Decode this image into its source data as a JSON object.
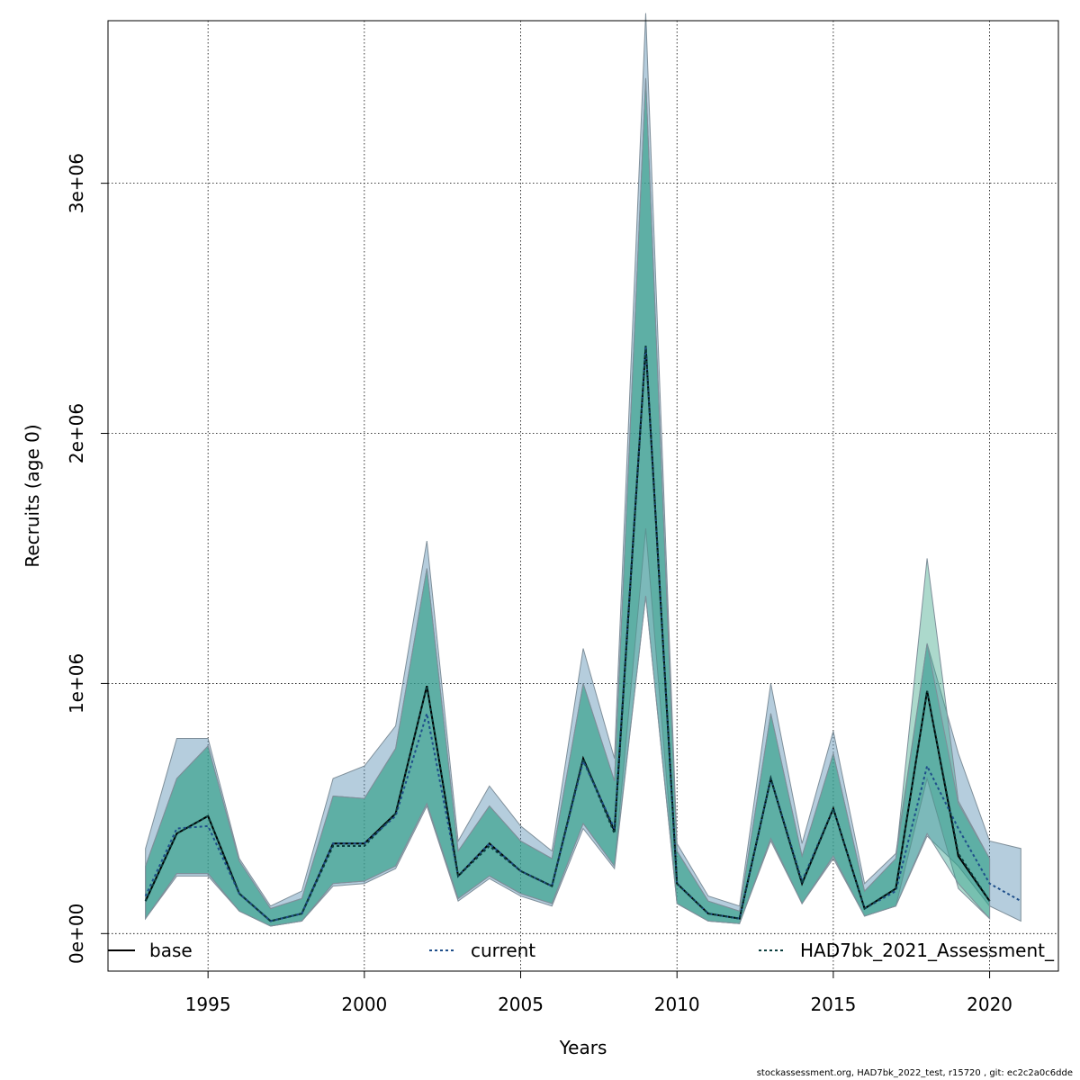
{
  "chart_data": {
    "type": "area",
    "xlabel": "Years",
    "ylabel": "Recruits (age 0)",
    "xlim": [
      1991.8,
      2022.2
    ],
    "ylim": [
      -150000,
      3650000
    ],
    "x_ticks": [
      {
        "value": 1995,
        "label": "1995"
      },
      {
        "value": 2000,
        "label": "2000"
      },
      {
        "value": 2005,
        "label": "2005"
      },
      {
        "value": 2010,
        "label": "2010"
      },
      {
        "value": 2015,
        "label": "2015"
      },
      {
        "value": 2020,
        "label": "2020"
      }
    ],
    "y_ticks": [
      {
        "value": 0,
        "label": "0e+00"
      },
      {
        "value": 1000000,
        "label": "1e+06"
      },
      {
        "value": 2000000,
        "label": "2e+06"
      },
      {
        "value": 3000000,
        "label": "3e+06"
      }
    ],
    "grid": true,
    "legend_position": "bottom",
    "series": [
      {
        "name": "base",
        "color": "#000000",
        "dash": "solid",
        "x": [
          1993,
          1994,
          1995,
          1996,
          1997,
          1998,
          1999,
          2000,
          2001,
          2002,
          2003,
          2004,
          2005,
          2006,
          2007,
          2008,
          2009,
          2010,
          2011,
          2012,
          2013,
          2014,
          2015,
          2016,
          2017,
          2018,
          2019,
          2020
        ],
        "y": [
          130000,
          400000,
          470000,
          160000,
          50000,
          80000,
          360000,
          360000,
          480000,
          990000,
          230000,
          360000,
          250000,
          190000,
          700000,
          410000,
          2350000,
          200000,
          80000,
          60000,
          620000,
          200000,
          500000,
          100000,
          180000,
          970000,
          310000,
          130000
        ],
        "lower": [
          60000,
          240000,
          240000,
          90000,
          30000,
          50000,
          200000,
          210000,
          270000,
          520000,
          140000,
          230000,
          160000,
          120000,
          440000,
          270000,
          1350000,
          120000,
          50000,
          40000,
          380000,
          120000,
          310000,
          70000,
          110000,
          400000,
          200000,
          60000
        ],
        "upper": [
          270000,
          620000,
          750000,
          290000,
          100000,
          140000,
          550000,
          540000,
          740000,
          1460000,
          330000,
          510000,
          370000,
          300000,
          1000000,
          610000,
          3420000,
          330000,
          130000,
          90000,
          880000,
          310000,
          720000,
          170000,
          300000,
          1160000,
          520000,
          300000
        ],
        "band_color": "#2e9e8a"
      },
      {
        "name": "current",
        "color": "#1f4f8a",
        "dash": "dotted",
        "x": [
          1993,
          1994,
          1995,
          1996,
          1997,
          1998,
          1999,
          2000,
          2001,
          2002,
          2003,
          2004,
          2005,
          2006,
          2007,
          2008,
          2009,
          2010,
          2011,
          2012,
          2013,
          2014,
          2015,
          2016,
          2017,
          2018,
          2019,
          2020,
          2021
        ],
        "y": [
          150000,
          420000,
          430000,
          160000,
          50000,
          80000,
          360000,
          360000,
          470000,
          880000,
          230000,
          360000,
          250000,
          190000,
          690000,
          420000,
          2350000,
          200000,
          80000,
          60000,
          620000,
          210000,
          500000,
          100000,
          170000,
          670000,
          420000,
          200000,
          130000
        ],
        "lower": [
          60000,
          230000,
          230000,
          90000,
          30000,
          50000,
          190000,
          200000,
          260000,
          510000,
          130000,
          220000,
          150000,
          110000,
          420000,
          260000,
          1350000,
          120000,
          50000,
          40000,
          370000,
          120000,
          300000,
          70000,
          110000,
          390000,
          270000,
          110000,
          50000
        ],
        "upper": [
          340000,
          780000,
          780000,
          300000,
          110000,
          170000,
          620000,
          670000,
          830000,
          1570000,
          370000,
          590000,
          430000,
          330000,
          1140000,
          700000,
          3680000,
          360000,
          150000,
          110000,
          1000000,
          360000,
          810000,
          200000,
          320000,
          1160000,
          720000,
          370000,
          340000
        ],
        "band_color": "#4f87ad"
      },
      {
        "name": "HAD7bk_2021_Assessment_",
        "color": "#0b3d3d",
        "dash": "dotted",
        "x": [
          1993,
          1994,
          1995,
          1996,
          1997,
          1998,
          1999,
          2000,
          2001,
          2002,
          2003,
          2004,
          2005,
          2006,
          2007,
          2008,
          2009,
          2010,
          2011,
          2012,
          2013,
          2014,
          2015,
          2016,
          2017,
          2018,
          2019,
          2020
        ],
        "y": [
          130000,
          400000,
          470000,
          160000,
          50000,
          80000,
          350000,
          350000,
          480000,
          990000,
          230000,
          350000,
          250000,
          190000,
          700000,
          400000,
          2350000,
          200000,
          80000,
          60000,
          620000,
          200000,
          500000,
          100000,
          180000,
          970000,
          320000,
          130000
        ],
        "lower": [
          60000,
          240000,
          240000,
          90000,
          30000,
          50000,
          200000,
          210000,
          270000,
          520000,
          140000,
          230000,
          160000,
          120000,
          440000,
          270000,
          1620000,
          120000,
          50000,
          40000,
          380000,
          120000,
          310000,
          70000,
          110000,
          620000,
          180000,
          60000
        ],
        "upper": [
          270000,
          620000,
          750000,
          290000,
          100000,
          140000,
          550000,
          540000,
          740000,
          1460000,
          330000,
          510000,
          370000,
          300000,
          1000000,
          610000,
          3420000,
          330000,
          130000,
          90000,
          880000,
          310000,
          720000,
          170000,
          300000,
          1500000,
          530000,
          300000
        ],
        "band_color": "#3aa586"
      }
    ]
  },
  "footer": "stockassessment.org, HAD7bk_2022_test, r15720 , git: ec2c2a0c6dde"
}
